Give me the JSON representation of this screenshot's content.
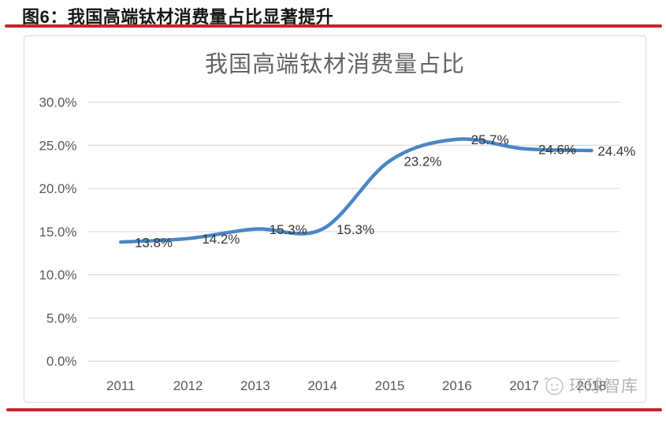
{
  "header": {
    "caption": "图6：我国高端钛材消费量占比显著提升"
  },
  "watermark": {
    "icon": "smiley-ball-icon",
    "text": "环球智库"
  },
  "colors": {
    "accent_red": "#c5262c",
    "line_blue": "#4a86c6",
    "grid_gray": "#dcdcdc",
    "axis_text_gray": "#595959",
    "title_gray": "#636363",
    "point_label_dark": "#353535",
    "watermark_gray": "#a6a6a6"
  },
  "chart_data": {
    "type": "line",
    "title": "我国高端钛材消费量占比",
    "series_name": "我国高端钛材消费量占比",
    "categories": [
      "2011",
      "2012",
      "2013",
      "2014",
      "2015",
      "2016",
      "2017",
      "2018"
    ],
    "values": [
      13.8,
      14.2,
      15.3,
      15.3,
      23.2,
      25.7,
      24.6,
      24.4
    ],
    "point_labels": [
      "13.8%",
      "14.2%",
      "15.3%",
      "15.3%",
      "23.2%",
      "25.7%",
      "24.6%",
      "24.4%"
    ],
    "xlabel": "",
    "ylabel": "",
    "ylim": [
      0,
      30
    ],
    "ytick_step": 5,
    "ytick_labels": [
      "0.0%",
      "5.0%",
      "10.0%",
      "15.0%",
      "20.0%",
      "25.0%",
      "30.0%"
    ],
    "grid": true,
    "legend": "none",
    "line_smooth": true
  }
}
